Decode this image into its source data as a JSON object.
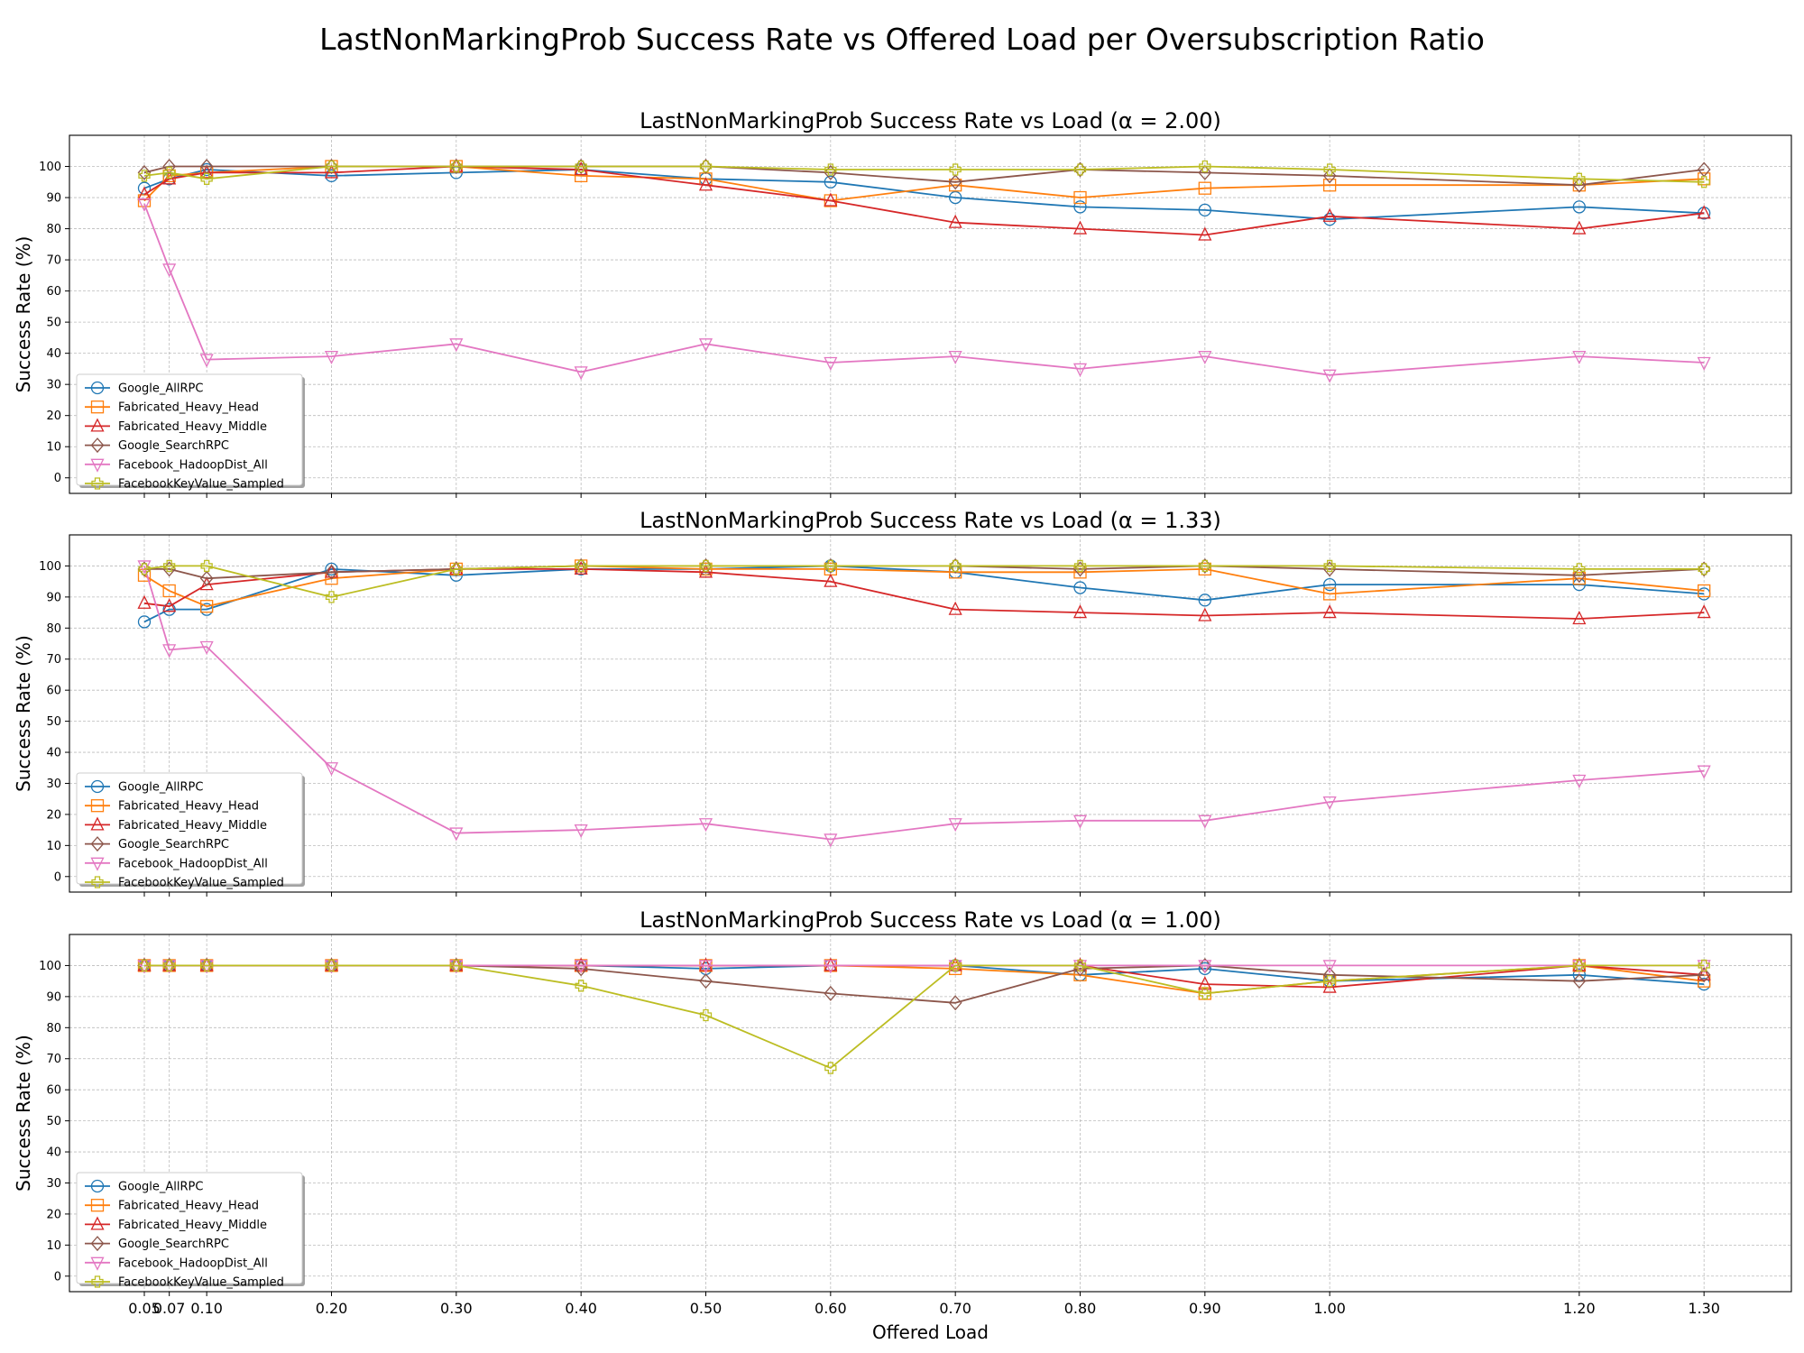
{
  "figure_title": "LastNonMarkingProb Success Rate vs Offered Load per Oversubscription Ratio",
  "chart_data": [
    {
      "type": "line",
      "title": "LastNonMarkingProb Success Rate vs Load (α = 2.00)",
      "xlabel": "",
      "ylabel": "Success Rate (%)",
      "x": [
        0.05,
        0.07,
        0.1,
        0.2,
        0.3,
        0.4,
        0.5,
        0.6,
        0.7,
        0.8,
        0.9,
        1.0,
        1.2,
        1.3
      ],
      "xlim": [
        -0.01,
        1.37
      ],
      "ylim": [
        -5,
        110
      ],
      "yticks": [
        0,
        10,
        20,
        30,
        40,
        50,
        60,
        70,
        80,
        90,
        100
      ],
      "grid": true,
      "legend_position": "lower-left",
      "series": [
        {
          "name": "Google_AllRPC",
          "color": "#1f77b4",
          "marker": "circle",
          "values": [
            93,
            96,
            99,
            97,
            98,
            99,
            96,
            95,
            90,
            87,
            86,
            83,
            87,
            85
          ]
        },
        {
          "name": "Fabricated_Heavy_Head",
          "color": "#ff7f0e",
          "marker": "square",
          "values": [
            89,
            97,
            98,
            100,
            100,
            97,
            96,
            89,
            94,
            90,
            93,
            94,
            94,
            96
          ]
        },
        {
          "name": "Fabricated_Heavy_Middle",
          "color": "#d62728",
          "marker": "triangle-up",
          "values": [
            91,
            96,
            98,
            98,
            100,
            99,
            94,
            89,
            82,
            80,
            78,
            84,
            80,
            85
          ]
        },
        {
          "name": "Google_SearchRPC",
          "color": "#8c564b",
          "marker": "diamond",
          "values": [
            98,
            100,
            100,
            100,
            100,
            100,
            100,
            98,
            95,
            99,
            98,
            97,
            94,
            99
          ]
        },
        {
          "name": "Facebook_HadoopDist_All",
          "color": "#e377c2",
          "marker": "triangle-down",
          "values": [
            88,
            67,
            38,
            39,
            43,
            34,
            43,
            37,
            39,
            35,
            39,
            33,
            39,
            37
          ]
        },
        {
          "name": "FacebookKeyValue_Sampled",
          "color": "#bcbd22",
          "marker": "plus",
          "values": [
            97,
            98,
            96,
            100,
            100,
            100,
            100,
            99,
            99,
            99,
            100,
            99,
            96,
            95
          ]
        }
      ]
    },
    {
      "type": "line",
      "title": "LastNonMarkingProb Success Rate vs Load (α = 1.33)",
      "xlabel": "",
      "ylabel": "Success Rate (%)",
      "x": [
        0.05,
        0.07,
        0.1,
        0.2,
        0.3,
        0.4,
        0.5,
        0.6,
        0.7,
        0.8,
        0.9,
        1.0,
        1.2,
        1.3
      ],
      "xlim": [
        -0.01,
        1.37
      ],
      "ylim": [
        -5,
        110
      ],
      "yticks": [
        0,
        10,
        20,
        30,
        40,
        50,
        60,
        70,
        80,
        90,
        100
      ],
      "grid": true,
      "legend_position": "lower-left",
      "series": [
        {
          "name": "Google_AllRPC",
          "color": "#1f77b4",
          "marker": "circle",
          "values": [
            82,
            86,
            86,
            99,
            97,
            99,
            99,
            100,
            98,
            93,
            89,
            94,
            94,
            91
          ]
        },
        {
          "name": "Fabricated_Heavy_Head",
          "color": "#ff7f0e",
          "marker": "square",
          "values": [
            97,
            92,
            87,
            96,
            99,
            100,
            99,
            99,
            98,
            98,
            99,
            91,
            96,
            92
          ]
        },
        {
          "name": "Fabricated_Heavy_Middle",
          "color": "#d62728",
          "marker": "triangle-up",
          "values": [
            88,
            87,
            94,
            98,
            99,
            99,
            98,
            95,
            86,
            85,
            84,
            85,
            83,
            85
          ]
        },
        {
          "name": "Google_SearchRPC",
          "color": "#8c564b",
          "marker": "diamond",
          "values": [
            99,
            99,
            96,
            98,
            99,
            100,
            100,
            100,
            100,
            99,
            100,
            99,
            97,
            99
          ]
        },
        {
          "name": "Facebook_HadoopDist_All",
          "color": "#e377c2",
          "marker": "triangle-down",
          "values": [
            100,
            73,
            74,
            35,
            14,
            15,
            17,
            12,
            17,
            18,
            18,
            24,
            31,
            34
          ]
        },
        {
          "name": "FacebookKeyValue_Sampled",
          "color": "#bcbd22",
          "marker": "plus",
          "values": [
            99,
            100,
            100,
            90,
            99,
            100,
            100,
            100,
            100,
            100,
            100,
            100,
            99,
            99
          ]
        }
      ]
    },
    {
      "type": "line",
      "title": "LastNonMarkingProb Success Rate vs Load (α = 1.00)",
      "xlabel": "Offered Load",
      "ylabel": "Success Rate (%)",
      "x": [
        0.05,
        0.07,
        0.1,
        0.2,
        0.3,
        0.4,
        0.5,
        0.6,
        0.7,
        0.8,
        0.9,
        1.0,
        1.2,
        1.3
      ],
      "xlim": [
        -0.01,
        1.37
      ],
      "ylim": [
        -5,
        110
      ],
      "yticks": [
        0,
        10,
        20,
        30,
        40,
        50,
        60,
        70,
        80,
        90,
        100
      ],
      "xticks": [
        0.05,
        0.07,
        0.1,
        0.2,
        0.3,
        0.4,
        0.5,
        0.6,
        0.7,
        0.8,
        0.9,
        1.0,
        1.2,
        1.3
      ],
      "xticklabels": [
        "0.05",
        "0.07",
        "0.10",
        "0.20",
        "0.30",
        "0.40",
        "0.50",
        "0.60",
        "0.70",
        "0.80",
        "0.90",
        "1.00",
        "1.20",
        "1.30"
      ],
      "grid": true,
      "legend_position": "lower-left",
      "series": [
        {
          "name": "Google_AllRPC",
          "color": "#1f77b4",
          "marker": "circle",
          "values": [
            100,
            100,
            100,
            100,
            100,
            100,
            99,
            100,
            100,
            97,
            99,
            95,
            97,
            94
          ]
        },
        {
          "name": "Fabricated_Heavy_Head",
          "color": "#ff7f0e",
          "marker": "square",
          "values": [
            100,
            100,
            100,
            100,
            100,
            100,
            100,
            100,
            99,
            97,
            91,
            95,
            100,
            95
          ]
        },
        {
          "name": "Fabricated_Heavy_Middle",
          "color": "#d62728",
          "marker": "triangle-up",
          "values": [
            100,
            100,
            100,
            100,
            100,
            100,
            100,
            100,
            100,
            100,
            94,
            93,
            100,
            97
          ]
        },
        {
          "name": "Google_SearchRPC",
          "color": "#8c564b",
          "marker": "diamond",
          "values": [
            100,
            100,
            100,
            100,
            100,
            99,
            95,
            91,
            88,
            99,
            100,
            97,
            95,
            97
          ]
        },
        {
          "name": "Facebook_HadoopDist_All",
          "color": "#e377c2",
          "marker": "triangle-down",
          "values": [
            100,
            100,
            100,
            100,
            100,
            100,
            100,
            100,
            100,
            100,
            100,
            100,
            100,
            100
          ]
        },
        {
          "name": "FacebookKeyValue_Sampled",
          "color": "#bcbd22",
          "marker": "plus",
          "values": [
            100,
            100,
            100,
            100,
            100,
            93.5,
            84,
            67,
            100,
            100,
            91,
            95,
            100,
            100
          ]
        }
      ]
    }
  ]
}
